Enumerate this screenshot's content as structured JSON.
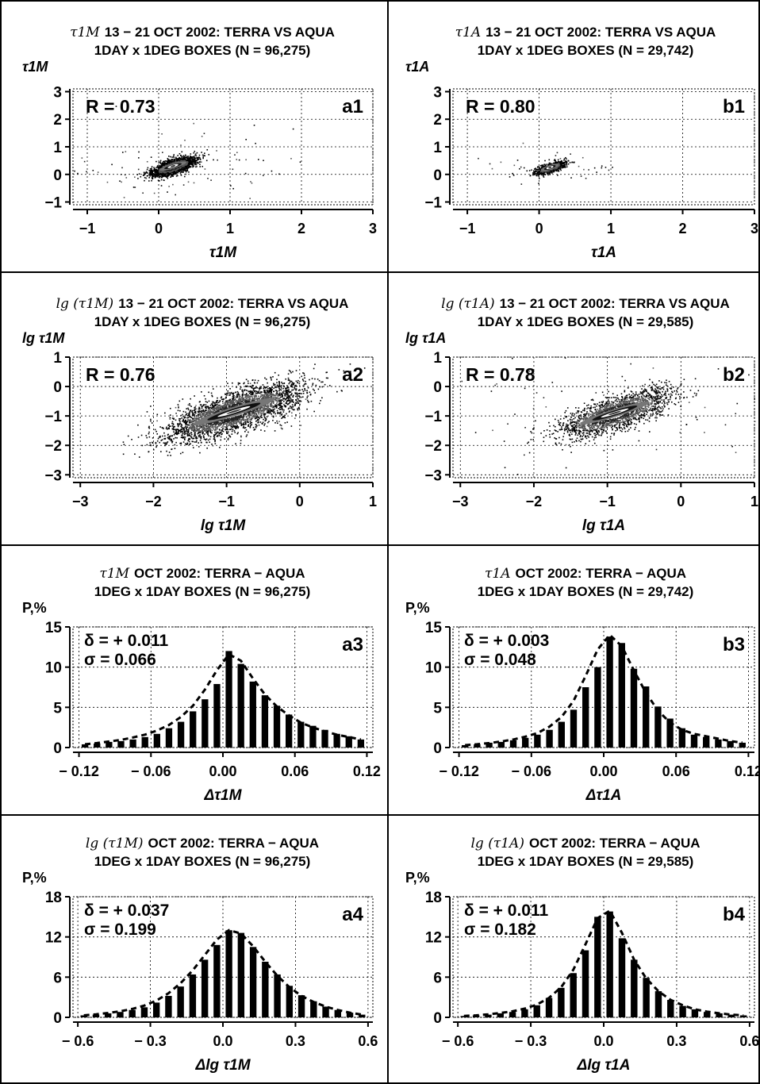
{
  "figure": {
    "panels": [
      {
        "id": "a1",
        "title_var": "τ1M",
        "title_line1": "13 − 21 OCT 2002: TERRA VS AQUA",
        "title_line2": "1DAY x 1DEG BOXES (N = 96,275)",
        "ylabel": "τ1M",
        "xlabel": "τ1M",
        "stat_text": "R = 0.73",
        "panel_label": "a1"
      },
      {
        "id": "b1",
        "title_var": "τ1A",
        "title_line1": "13 − 21 OCT 2002: TERRA VS AQUA",
        "title_line2": "1DAY x 1DEG BOXES (N = 29,742)",
        "ylabel": "τ1A",
        "xlabel": "τ1A",
        "stat_text": "R = 0.80",
        "panel_label": "b1"
      },
      {
        "id": "a2",
        "title_var": "lg (τ1M)",
        "title_line1": "13 − 21 OCT 2002: TERRA VS AQUA",
        "title_line2": "1DAY x 1DEG BOXES (N = 96,275)",
        "ylabel": "lg τ1M",
        "xlabel": "lg τ1M",
        "stat_text": "R = 0.76",
        "panel_label": "a2"
      },
      {
        "id": "b2",
        "title_var": "lg (τ1A)",
        "title_line1": "13 − 21 OCT 2002: TERRA VS AQUA",
        "title_line2": "1DAY x 1DEG BOXES (N = 29,585)",
        "ylabel": "lg τ1A",
        "xlabel": "lg τ1A",
        "stat_text": "R = 0.78",
        "panel_label": "b2"
      },
      {
        "id": "a3",
        "title_var": "τ1M",
        "title_line1": "OCT 2002: TERRA − AQUA",
        "title_line2": "1DEG x 1DAY BOXES (N = 96,275)",
        "ylabel": "P,%",
        "xlabel": "Δτ1M",
        "stat_delta": "δ = + 0.011",
        "stat_sigma": "σ =    0.066",
        "panel_label": "a3"
      },
      {
        "id": "b3",
        "title_var": "τ1A",
        "title_line1": "OCT 2002: TERRA − AQUA",
        "title_line2": "1DEG x 1DAY BOXES (N = 29,742)",
        "ylabel": "P,%",
        "xlabel": "Δτ1A",
        "stat_delta": "δ = + 0.003",
        "stat_sigma": "σ =    0.048",
        "panel_label": "b3"
      },
      {
        "id": "a4",
        "title_var": "lg (τ1M)",
        "title_line1": "OCT 2002: TERRA − AQUA",
        "title_line2": "1DEG x 1DAY BOXES (N = 96,275)",
        "ylabel": "P,%",
        "xlabel": "Δlg τ1M",
        "stat_delta": "δ = + 0.037",
        "stat_sigma": "σ =    0.199",
        "panel_label": "a4"
      },
      {
        "id": "b4",
        "title_var": "lg (τ1A)",
        "title_line1": "OCT 2002: TERRA − AQUA",
        "title_line2": "1DEG x 1DAY BOXES (N = 29,585)",
        "ylabel": "P,%",
        "xlabel": "Δlg τ1A",
        "stat_delta": "δ = + 0.011",
        "stat_sigma": "σ =    0.182",
        "panel_label": "b4"
      }
    ]
  },
  "chart_data": [
    {
      "id": "a1",
      "type": "scatter",
      "xlim": [
        -1.2,
        3.0
      ],
      "ylim": [
        -1.1,
        3.1
      ],
      "xticks": [
        -1,
        0,
        1,
        2,
        3
      ],
      "xtick_labels": [
        "−1",
        "0",
        "1",
        "2",
        "3"
      ],
      "yticks": [
        -1,
        0,
        1,
        2,
        3
      ],
      "ytick_labels": [
        "−1",
        "0",
        "1",
        "2",
        "3"
      ],
      "grid": true,
      "density": {
        "center": [
          0.2,
          0.3
        ],
        "spread": [
          0.15,
          0.12
        ],
        "slope": 0.75,
        "n_points": 2200,
        "tail": [
          0.8,
          0.6
        ]
      },
      "correlation": 0.73
    },
    {
      "id": "b1",
      "type": "scatter",
      "xlim": [
        -1.2,
        3.0
      ],
      "ylim": [
        -1.1,
        3.1
      ],
      "xticks": [
        -1,
        0,
        1,
        2,
        3
      ],
      "xtick_labels": [
        "−1",
        "0",
        "1",
        "2",
        "3"
      ],
      "yticks": [
        -1,
        0,
        1,
        2,
        3
      ],
      "ytick_labels": [
        "−1",
        "0",
        "1",
        "2",
        "3"
      ],
      "grid": true,
      "density": {
        "center": [
          0.15,
          0.25
        ],
        "spread": [
          0.1,
          0.08
        ],
        "slope": 0.8,
        "n_points": 900,
        "tail": [
          0.4,
          0.3
        ]
      },
      "correlation": 0.8
    },
    {
      "id": "a2",
      "type": "scatter",
      "xlim": [
        -3.1,
        1.0
      ],
      "ylim": [
        -3.1,
        1.0
      ],
      "xticks": [
        -3,
        -2,
        -1,
        0,
        1
      ],
      "xtick_labels": [
        "−3",
        "−2",
        "−1",
        "0",
        "1"
      ],
      "yticks": [
        -3,
        -2,
        -1,
        0,
        1
      ],
      "ytick_labels": [
        "−3",
        "−2",
        "−1",
        "0",
        "1"
      ],
      "grid": true,
      "density": {
        "center": [
          -0.9,
          -0.85
        ],
        "spread": [
          0.45,
          0.32
        ],
        "slope": 0.78,
        "n_points": 3500,
        "tail": [
          0.3,
          0.3
        ]
      },
      "correlation": 0.76
    },
    {
      "id": "b2",
      "type": "scatter",
      "xlim": [
        -3.1,
        1.0
      ],
      "ylim": [
        -3.1,
        1.0
      ],
      "xticks": [
        -3,
        -2,
        -1,
        0,
        1
      ],
      "xtick_labels": [
        "−3",
        "−2",
        "−1",
        "0",
        "1"
      ],
      "yticks": [
        -3,
        -2,
        -1,
        0,
        1
      ],
      "ytick_labels": [
        "−3",
        "−2",
        "−1",
        "0",
        "1"
      ],
      "grid": true,
      "density": {
        "center": [
          -0.9,
          -0.9
        ],
        "spread": [
          0.38,
          0.28
        ],
        "slope": 0.78,
        "n_points": 2200,
        "tail": [
          1.3,
          0.7
        ]
      },
      "correlation": 0.78
    },
    {
      "id": "a3",
      "type": "bar",
      "xlim": [
        -0.125,
        0.125
      ],
      "ylim": [
        0,
        15
      ],
      "xticks": [
        -0.12,
        -0.06,
        0.0,
        0.06,
        0.12
      ],
      "xtick_labels": [
        "− 0.12",
        "− 0.06",
        "0.00",
        "0.06",
        "0.12"
      ],
      "yticks": [
        0,
        5,
        10,
        15
      ],
      "ytick_labels": [
        "0",
        "5",
        "10",
        "15"
      ],
      "grid": true,
      "x": [
        -0.115,
        -0.105,
        -0.095,
        -0.085,
        -0.075,
        -0.065,
        -0.055,
        -0.045,
        -0.035,
        -0.025,
        -0.015,
        -0.005,
        0.005,
        0.015,
        0.025,
        0.035,
        0.045,
        0.055,
        0.065,
        0.075,
        0.085,
        0.095,
        0.105,
        0.115
      ],
      "values": [
        0.4,
        0.5,
        0.7,
        0.8,
        1.0,
        1.3,
        1.7,
        2.4,
        3.2,
        4.5,
        6.0,
        7.9,
        12.0,
        10.4,
        8.2,
        6.5,
        5.2,
        4.1,
        3.2,
        2.7,
        2.2,
        1.7,
        1.4,
        1.0
      ],
      "fit": [
        0.4,
        0.55,
        0.75,
        0.95,
        1.25,
        1.6,
        2.1,
        2.8,
        3.8,
        5.2,
        7.2,
        9.6,
        11.6,
        10.8,
        8.6,
        6.6,
        5.1,
        4.0,
        3.1,
        2.5,
        2.0,
        1.6,
        1.3,
        1.0
      ]
    },
    {
      "id": "b3",
      "type": "bar",
      "xlim": [
        -0.125,
        0.125
      ],
      "ylim": [
        0,
        15
      ],
      "xticks": [
        -0.12,
        -0.06,
        0.0,
        0.06,
        0.12
      ],
      "xtick_labels": [
        "− 0.12",
        "− 0.06",
        "0.00",
        "0.06",
        "0.12"
      ],
      "yticks": [
        0,
        5,
        10,
        15
      ],
      "ytick_labels": [
        "0",
        "5",
        "10",
        "15"
      ],
      "grid": true,
      "x": [
        -0.115,
        -0.105,
        -0.095,
        -0.085,
        -0.075,
        -0.065,
        -0.055,
        -0.045,
        -0.035,
        -0.025,
        -0.015,
        -0.005,
        0.005,
        0.015,
        0.025,
        0.035,
        0.045,
        0.055,
        0.065,
        0.075,
        0.085,
        0.095,
        0.105,
        0.115
      ],
      "values": [
        0.3,
        0.4,
        0.6,
        0.7,
        0.9,
        1.2,
        1.6,
        2.2,
        3.2,
        4.7,
        7.5,
        10.0,
        13.8,
        13.0,
        9.8,
        7.6,
        5.1,
        3.6,
        2.4,
        1.6,
        1.3,
        1.0,
        0.8,
        0.6
      ],
      "fit": [
        0.3,
        0.4,
        0.55,
        0.75,
        1.0,
        1.35,
        1.8,
        2.6,
        3.8,
        5.8,
        8.9,
        12.2,
        14.0,
        12.6,
        9.6,
        6.8,
        4.6,
        3.1,
        2.2,
        1.7,
        1.4,
        1.1,
        0.8,
        0.6
      ]
    },
    {
      "id": "a4",
      "type": "bar",
      "xlim": [
        -0.62,
        0.62
      ],
      "ylim": [
        0,
        18
      ],
      "xticks": [
        -0.6,
        -0.3,
        0.0,
        0.3,
        0.6
      ],
      "xtick_labels": [
        "− 0.6",
        "− 0.3",
        "0.0",
        "0.3",
        "0.6"
      ],
      "yticks": [
        0,
        6,
        12,
        18
      ],
      "ytick_labels": [
        "0",
        "6",
        "12",
        "18"
      ],
      "grid": true,
      "x": [
        -0.575,
        -0.525,
        -0.475,
        -0.425,
        -0.375,
        -0.325,
        -0.275,
        -0.225,
        -0.175,
        -0.125,
        -0.075,
        -0.025,
        0.025,
        0.075,
        0.125,
        0.175,
        0.225,
        0.275,
        0.325,
        0.375,
        0.425,
        0.475,
        0.525,
        0.575
      ],
      "values": [
        0.3,
        0.4,
        0.6,
        0.8,
        1.1,
        1.5,
        2.2,
        3.2,
        4.6,
        6.4,
        8.6,
        10.8,
        13.0,
        12.6,
        10.5,
        8.3,
        6.4,
        4.7,
        3.3,
        2.4,
        1.6,
        1.1,
        0.7,
        0.4
      ],
      "fit": [
        0.3,
        0.45,
        0.65,
        0.9,
        1.25,
        1.75,
        2.5,
        3.6,
        5.1,
        7.0,
        9.3,
        11.6,
        13.0,
        12.5,
        10.6,
        8.3,
        6.2,
        4.5,
        3.2,
        2.3,
        1.6,
        1.1,
        0.7,
        0.4
      ]
    },
    {
      "id": "b4",
      "type": "bar",
      "xlim": [
        -0.62,
        0.62
      ],
      "ylim": [
        0,
        18
      ],
      "xticks": [
        -0.6,
        -0.3,
        0.0,
        0.3,
        0.6
      ],
      "xtick_labels": [
        "− 0.6",
        "− 0.3",
        "0.0",
        "0.3",
        "0.6"
      ],
      "yticks": [
        0,
        6,
        12,
        18
      ],
      "ytick_labels": [
        "0",
        "6",
        "12",
        "18"
      ],
      "grid": true,
      "x": [
        -0.575,
        -0.525,
        -0.475,
        -0.425,
        -0.375,
        -0.325,
        -0.275,
        -0.225,
        -0.175,
        -0.125,
        -0.075,
        -0.025,
        0.025,
        0.075,
        0.125,
        0.175,
        0.225,
        0.275,
        0.325,
        0.375,
        0.425,
        0.475,
        0.525,
        0.575
      ],
      "values": [
        0.2,
        0.3,
        0.4,
        0.6,
        0.8,
        1.2,
        1.8,
        2.9,
        4.4,
        6.6,
        10.0,
        15.0,
        15.8,
        11.8,
        8.6,
        5.9,
        3.9,
        2.6,
        1.7,
        1.2,
        0.8,
        0.6,
        0.4,
        0.3
      ],
      "fit": [
        0.2,
        0.3,
        0.45,
        0.65,
        0.9,
        1.3,
        1.9,
        2.9,
        4.5,
        7.1,
        10.9,
        14.8,
        15.9,
        12.6,
        8.6,
        5.8,
        3.9,
        2.6,
        1.8,
        1.2,
        0.85,
        0.6,
        0.4,
        0.3
      ]
    }
  ]
}
